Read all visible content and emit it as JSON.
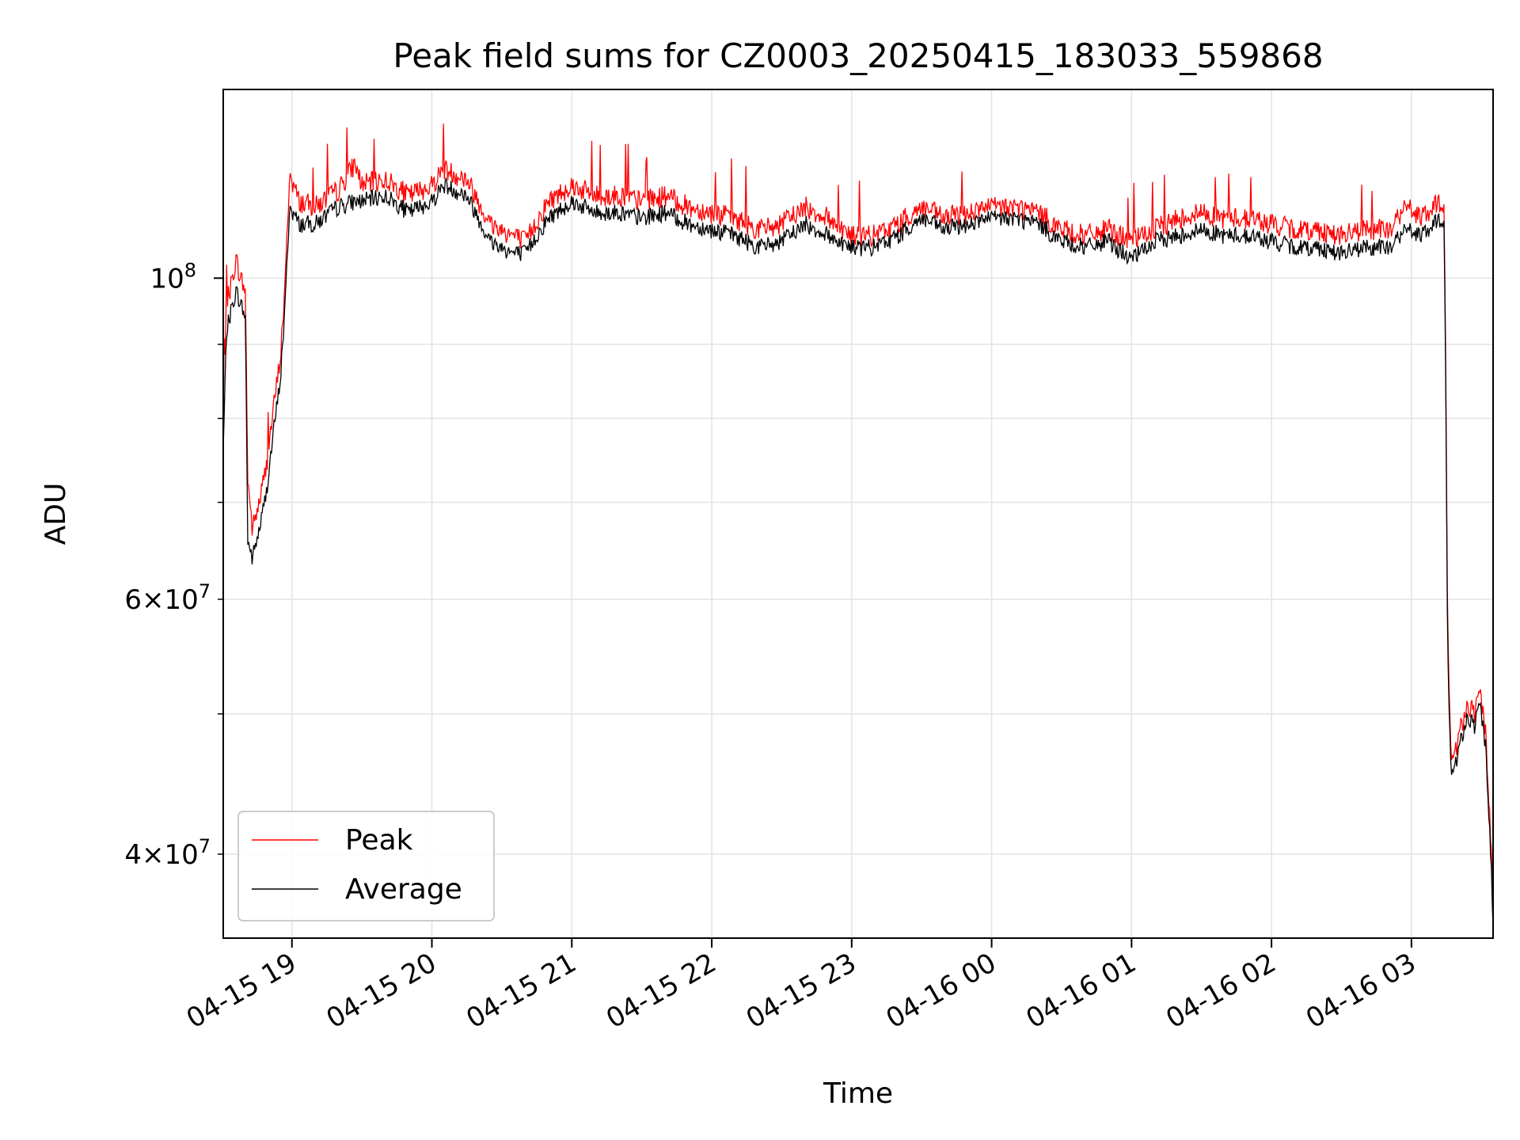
{
  "chart_data": {
    "type": "line",
    "title": "Peak field sums for CZ0003_20250415_183033_559868",
    "xlabel": "Time",
    "ylabel": "ADU",
    "x_range": [
      "2025-04-15T18:30:33",
      "2025-04-16T03:35:00"
    ],
    "y_scale": "log",
    "ylim": [
      35000000,
      135000000
    ],
    "grid": true,
    "legend_position": "lower-left",
    "x_ticks": [
      "04-15 19",
      "04-15 20",
      "04-15 21",
      "04-15 22",
      "04-15 23",
      "04-16 00",
      "04-16 01",
      "04-16 02",
      "04-16 03"
    ],
    "y_major_ticks": [
      {
        "value": 100000000,
        "base": "10",
        "exp": "8"
      }
    ],
    "y_minor_ticks": [
      {
        "value": 40000000,
        "mant": "4",
        "base": "10",
        "exp": "7"
      },
      {
        "value": 60000000,
        "mant": "6",
        "base": "10",
        "exp": "7"
      }
    ],
    "y_minor_gridlines": [
      50000000,
      70000000,
      80000000,
      90000000
    ],
    "series": [
      {
        "name": "Peak",
        "color": "#ff0000",
        "points": [
          [
            "2025-04-15T18:30:33",
            80000000
          ],
          [
            "2025-04-15T18:32:00",
            96000000
          ],
          [
            "2025-04-15T18:34:00",
            99000000
          ],
          [
            "2025-04-15T18:36:00",
            103000000
          ],
          [
            "2025-04-15T18:38:00",
            100000000
          ],
          [
            "2025-04-15T18:40:00",
            98000000
          ],
          [
            "2025-04-15T18:41:00",
            73000000
          ],
          [
            "2025-04-15T18:43:00",
            67000000
          ],
          [
            "2025-04-15T18:46:00",
            70000000
          ],
          [
            "2025-04-15T18:49:00",
            74000000
          ],
          [
            "2025-04-15T18:52:00",
            81000000
          ],
          [
            "2025-04-15T18:55:00",
            88000000
          ],
          [
            "2025-04-15T18:57:00",
            98000000
          ],
          [
            "2025-04-15T18:59:00",
            118000000
          ],
          [
            "2025-04-15T19:03:00",
            113000000
          ],
          [
            "2025-04-15T19:10:00",
            112000000
          ],
          [
            "2025-04-15T19:20:00",
            115000000
          ],
          [
            "2025-04-15T19:27:00",
            120000000
          ],
          [
            "2025-04-15T19:30:00",
            116000000
          ],
          [
            "2025-04-15T19:40:00",
            117000000
          ],
          [
            "2025-04-15T19:50:00",
            114000000
          ],
          [
            "2025-04-15T20:00:00",
            116000000
          ],
          [
            "2025-04-15T20:05:00",
            119000000
          ],
          [
            "2025-04-15T20:15:00",
            117000000
          ],
          [
            "2025-04-15T20:25:00",
            109000000
          ],
          [
            "2025-04-15T20:35:00",
            107000000
          ],
          [
            "2025-04-15T20:40:00",
            106000000
          ],
          [
            "2025-04-15T20:50:00",
            113000000
          ],
          [
            "2025-04-15T21:00:00",
            116000000
          ],
          [
            "2025-04-15T21:10:00",
            114000000
          ],
          [
            "2025-04-15T21:20:00",
            114000000
          ],
          [
            "2025-04-15T21:30:00",
            113000000
          ],
          [
            "2025-04-15T21:40:00",
            114000000
          ],
          [
            "2025-04-15T21:50:00",
            112000000
          ],
          [
            "2025-04-15T22:00:00",
            111000000
          ],
          [
            "2025-04-15T22:10:00",
            110000000
          ],
          [
            "2025-04-15T22:20:00",
            108000000
          ],
          [
            "2025-04-15T22:30:00",
            109000000
          ],
          [
            "2025-04-15T22:40:00",
            112000000
          ],
          [
            "2025-04-15T22:50:00",
            110000000
          ],
          [
            "2025-04-15T23:00:00",
            107000000
          ],
          [
            "2025-04-15T23:10:00",
            107000000
          ],
          [
            "2025-04-15T23:20:00",
            109000000
          ],
          [
            "2025-04-15T23:30:00",
            112000000
          ],
          [
            "2025-04-15T23:40:00",
            110000000
          ],
          [
            "2025-04-15T23:50:00",
            111000000
          ],
          [
            "2025-04-16T00:00:00",
            112000000
          ],
          [
            "2025-04-16T00:10:00",
            112000000
          ],
          [
            "2025-04-16T00:20:00",
            111000000
          ],
          [
            "2025-04-16T00:30:00",
            108000000
          ],
          [
            "2025-04-16T00:40:00",
            107000000
          ],
          [
            "2025-04-16T00:50:00",
            108000000
          ],
          [
            "2025-04-16T01:00:00",
            106000000
          ],
          [
            "2025-04-16T01:10:00",
            108000000
          ],
          [
            "2025-04-16T01:20:00",
            110000000
          ],
          [
            "2025-04-16T01:30:00",
            111000000
          ],
          [
            "2025-04-16T01:40:00",
            110000000
          ],
          [
            "2025-04-16T01:50:00",
            110000000
          ],
          [
            "2025-04-16T02:00:00",
            109000000
          ],
          [
            "2025-04-16T02:10:00",
            108000000
          ],
          [
            "2025-04-16T02:20:00",
            108000000
          ],
          [
            "2025-04-16T02:30:00",
            107000000
          ],
          [
            "2025-04-16T02:40:00",
            108000000
          ],
          [
            "2025-04-16T02:50:00",
            108000000
          ],
          [
            "2025-04-16T02:58:00",
            112000000
          ],
          [
            "2025-04-16T03:05:00",
            110000000
          ],
          [
            "2025-04-16T03:10:00",
            112000000
          ],
          [
            "2025-04-16T03:14:00",
            113000000
          ],
          [
            "2025-04-16T03:15:30",
            57000000
          ],
          [
            "2025-04-16T03:17:00",
            46000000
          ],
          [
            "2025-04-16T03:20:00",
            48000000
          ],
          [
            "2025-04-16T03:24:00",
            51000000
          ],
          [
            "2025-04-16T03:27:00",
            50000000
          ],
          [
            "2025-04-16T03:29:00",
            52000000
          ],
          [
            "2025-04-16T03:32:00",
            48000000
          ],
          [
            "2025-04-16T03:35:00",
            37000000
          ]
        ]
      },
      {
        "name": "Average",
        "color": "#000000",
        "points": [
          [
            "2025-04-15T18:30:33",
            76000000
          ],
          [
            "2025-04-15T18:32:00",
            92000000
          ],
          [
            "2025-04-15T18:34:00",
            95000000
          ],
          [
            "2025-04-15T18:36:00",
            98000000
          ],
          [
            "2025-04-15T18:38:00",
            96000000
          ],
          [
            "2025-04-15T18:40:00",
            94000000
          ],
          [
            "2025-04-15T18:41:00",
            66000000
          ],
          [
            "2025-04-15T18:43:00",
            64000000
          ],
          [
            "2025-04-15T18:46:00",
            67000000
          ],
          [
            "2025-04-15T18:49:00",
            71000000
          ],
          [
            "2025-04-15T18:52:00",
            78000000
          ],
          [
            "2025-04-15T18:55:00",
            85000000
          ],
          [
            "2025-04-15T18:57:00",
            95000000
          ],
          [
            "2025-04-15T18:59:00",
            112000000
          ],
          [
            "2025-04-15T19:03:00",
            109000000
          ],
          [
            "2025-04-15T19:10:00",
            109000000
          ],
          [
            "2025-04-15T19:20:00",
            112000000
          ],
          [
            "2025-04-15T19:27:00",
            113000000
          ],
          [
            "2025-04-15T19:30:00",
            113000000
          ],
          [
            "2025-04-15T19:40:00",
            114000000
          ],
          [
            "2025-04-15T19:50:00",
            111000000
          ],
          [
            "2025-04-15T20:00:00",
            113000000
          ],
          [
            "2025-04-15T20:05:00",
            116000000
          ],
          [
            "2025-04-15T20:15:00",
            114000000
          ],
          [
            "2025-04-15T20:25:00",
            106000000
          ],
          [
            "2025-04-15T20:35:00",
            104000000
          ],
          [
            "2025-04-15T20:40:00",
            104000000
          ],
          [
            "2025-04-15T20:50:00",
            110000000
          ],
          [
            "2025-04-15T21:00:00",
            113000000
          ],
          [
            "2025-04-15T21:10:00",
            111000000
          ],
          [
            "2025-04-15T21:20:00",
            111000000
          ],
          [
            "2025-04-15T21:30:00",
            110000000
          ],
          [
            "2025-04-15T21:40:00",
            111000000
          ],
          [
            "2025-04-15T21:50:00",
            109000000
          ],
          [
            "2025-04-15T22:00:00",
            108000000
          ],
          [
            "2025-04-15T22:10:00",
            107000000
          ],
          [
            "2025-04-15T22:20:00",
            105000000
          ],
          [
            "2025-04-15T22:30:00",
            106000000
          ],
          [
            "2025-04-15T22:40:00",
            109000000
          ],
          [
            "2025-04-15T22:50:00",
            107000000
          ],
          [
            "2025-04-15T23:00:00",
            105000000
          ],
          [
            "2025-04-15T23:10:00",
            105000000
          ],
          [
            "2025-04-15T23:20:00",
            107000000
          ],
          [
            "2025-04-15T23:30:00",
            110000000
          ],
          [
            "2025-04-15T23:40:00",
            108000000
          ],
          [
            "2025-04-15T23:50:00",
            109000000
          ],
          [
            "2025-04-16T00:00:00",
            110000000
          ],
          [
            "2025-04-16T00:10:00",
            110000000
          ],
          [
            "2025-04-16T00:20:00",
            109000000
          ],
          [
            "2025-04-16T00:30:00",
            106000000
          ],
          [
            "2025-04-16T00:40:00",
            105000000
          ],
          [
            "2025-04-16T00:50:00",
            106000000
          ],
          [
            "2025-04-16T01:00:00",
            103000000
          ],
          [
            "2025-04-16T01:10:00",
            106000000
          ],
          [
            "2025-04-16T01:20:00",
            107000000
          ],
          [
            "2025-04-16T01:30:00",
            108000000
          ],
          [
            "2025-04-16T01:40:00",
            107000000
          ],
          [
            "2025-04-16T01:50:00",
            107000000
          ],
          [
            "2025-04-16T02:00:00",
            106000000
          ],
          [
            "2025-04-16T02:10:00",
            105000000
          ],
          [
            "2025-04-16T02:20:00",
            105000000
          ],
          [
            "2025-04-16T02:30:00",
            104000000
          ],
          [
            "2025-04-16T02:40:00",
            105000000
          ],
          [
            "2025-04-16T02:50:00",
            105000000
          ],
          [
            "2025-04-16T02:58:00",
            108000000
          ],
          [
            "2025-04-16T03:05:00",
            107000000
          ],
          [
            "2025-04-16T03:10:00",
            109000000
          ],
          [
            "2025-04-16T03:14:00",
            110000000
          ],
          [
            "2025-04-16T03:15:30",
            55000000
          ],
          [
            "2025-04-16T03:17:00",
            45000000
          ],
          [
            "2025-04-16T03:20:00",
            47000000
          ],
          [
            "2025-04-16T03:24:00",
            50000000
          ],
          [
            "2025-04-16T03:27:00",
            49000000
          ],
          [
            "2025-04-16T03:29:00",
            51000000
          ],
          [
            "2025-04-16T03:32:00",
            47000000
          ],
          [
            "2025-04-16T03:35:00",
            36000000
          ]
        ]
      }
    ]
  }
}
